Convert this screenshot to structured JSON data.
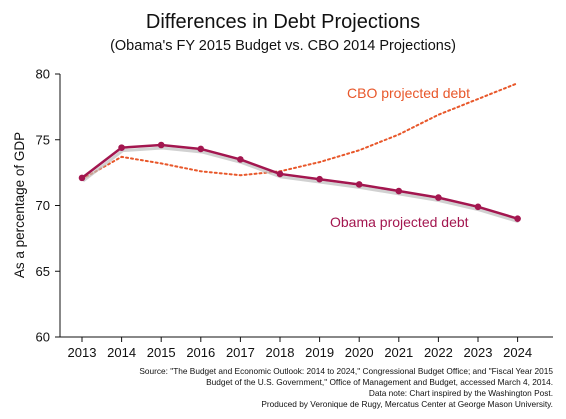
{
  "chart_data": {
    "type": "line",
    "title": "Differences in Debt Projections",
    "subtitle": "(Obama's FY 2015 Budget vs. CBO 2014 Projections)",
    "xlabel": "",
    "ylabel": "As a percentage of GDP",
    "x": [
      "2013",
      "2014",
      "2015",
      "2016",
      "2017",
      "2018",
      "2019",
      "2020",
      "2021",
      "2022",
      "2023",
      "2024"
    ],
    "yticks": [
      "80",
      "75",
      "70",
      "65",
      "60"
    ],
    "ylim": [
      60,
      80
    ],
    "grid": false,
    "series": [
      {
        "name": "Obama projected debt",
        "style": "solid-with-markers",
        "color": "#a3164f",
        "values": [
          72.1,
          74.4,
          74.6,
          74.3,
          73.5,
          72.4,
          72.0,
          71.6,
          71.1,
          70.6,
          69.9,
          69.0
        ]
      },
      {
        "name": "CBO projected debt",
        "style": "dotted",
        "color": "#e8572a",
        "values": [
          72.0,
          73.7,
          73.2,
          72.6,
          72.3,
          72.6,
          73.3,
          74.2,
          75.4,
          76.9,
          78.1,
          79.3
        ]
      }
    ]
  },
  "source_lines": [
    "Source: \"The Budget and Economic Outlook: 2014 to 2024,\" Congressional Budget Office; and \"Fiscal Year 2015",
    "Budget of the U.S. Government,\" Office of Management and Budget, accessed March 4, 2014.",
    "Data note: Chart inspired by the Washington Post.",
    "Produced by Veronique de Rugy, Mercatus Center at George Mason University."
  ]
}
